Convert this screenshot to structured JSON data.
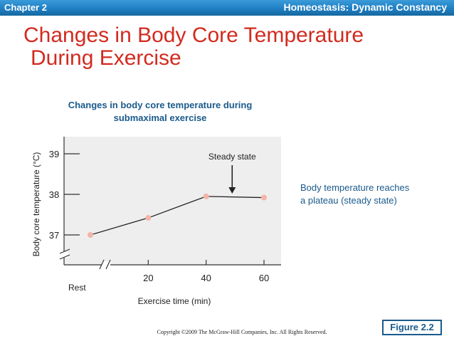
{
  "header": {
    "chapter": "Chapter 2",
    "section": "Homeostasis: Dynamic Constancy",
    "bar_color": "#1f7fc4"
  },
  "title": {
    "line1": "Changes in Body Core Temperature",
    "line2": "During Exercise",
    "color": "#d22a1f"
  },
  "annotation": {
    "line1": "Body temperature reaches",
    "line2": "a plateau (steady state)"
  },
  "figure_label": "Figure 2.2",
  "copyright": "Copyright ©2009 The McGraw-Hill Companies, Inc. All Rights Reserved.",
  "chart_data": {
    "type": "line",
    "title_line1": "Changes in body core temperature during",
    "title_line2": "submaximal exercise",
    "xlabel": "Exercise time (min)",
    "ylabel": "Body core temperature (°C)",
    "x_ticks": [
      20,
      40,
      60
    ],
    "x_tick_labels": [
      "20",
      "40",
      "60"
    ],
    "x_rest_label": "Rest",
    "y_ticks": [
      37,
      38,
      39
    ],
    "y_tick_labels": [
      "37",
      "38",
      "39"
    ],
    "xlim": [
      0,
      66
    ],
    "ylim": [
      36.5,
      39.3
    ],
    "grid": false,
    "axis_breaks": true,
    "series": [
      {
        "name": "Body core temperature",
        "x": [
          0,
          20,
          40,
          60
        ],
        "y": [
          37.0,
          37.42,
          37.95,
          37.92
        ],
        "color": "#222222",
        "marker_color": "#f2b5a8"
      }
    ],
    "annotations": [
      {
        "text": "Steady state",
        "x": 49,
        "y": 38.45,
        "arrow_to_y": 38.0
      }
    ],
    "plot_bg": "#eeeeee"
  }
}
